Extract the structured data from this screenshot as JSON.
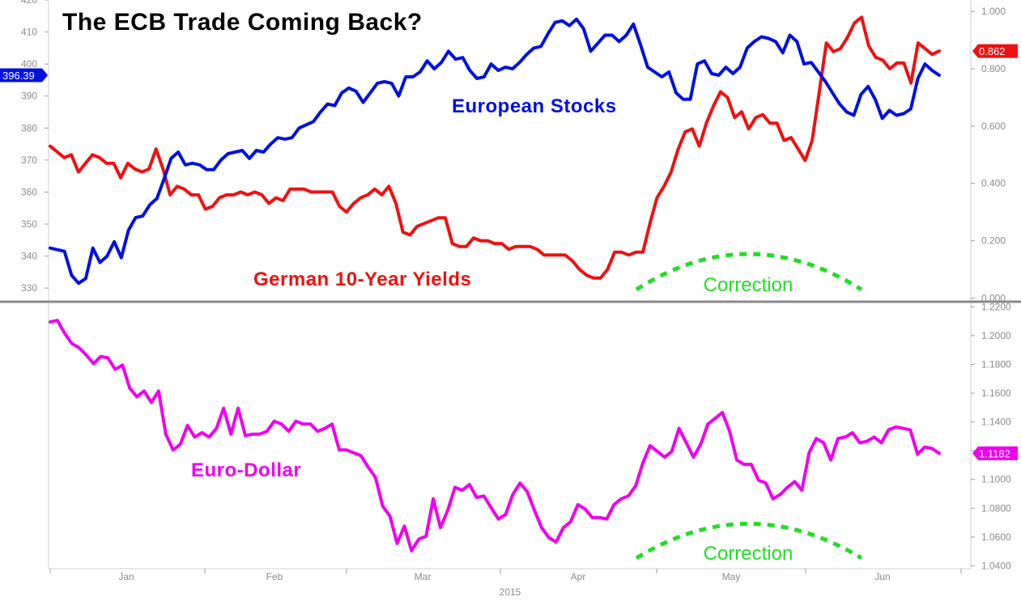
{
  "chart_data": [
    {
      "type": "line",
      "title": "The ECB Trade Coming Back?",
      "x_ticks": [
        "Jan",
        "Feb",
        "Mar",
        "Apr",
        "May",
        "Jun"
      ],
      "x_year": "2015",
      "left_axis": {
        "ylim": [
          326,
          420
        ],
        "ticks": [
          "420",
          "410",
          "400",
          "390",
          "380",
          "370",
          "360",
          "350",
          "340",
          "330"
        ],
        "tick_values": [
          420,
          410,
          400,
          390,
          380,
          370,
          360,
          350,
          340,
          330
        ]
      },
      "right_axis": {
        "ylim": [
          -0.01,
          1.04
        ],
        "ticks": [
          "1.000",
          "0.800",
          "0.600",
          "0.400",
          "0.200",
          "0.000"
        ],
        "tick_values": [
          1.0,
          0.8,
          0.6,
          0.4,
          0.2,
          0.0
        ]
      },
      "series": [
        {
          "name": "European Stocks",
          "axis": "left",
          "color": "#0011dd",
          "last_value": "396.39",
          "values": [
            342.5,
            342,
            341.5,
            334,
            331.5,
            333,
            342.5,
            338,
            340,
            344.5,
            339.5,
            348,
            352,
            352.5,
            356,
            358,
            364,
            370.5,
            372.5,
            368.5,
            369,
            368.5,
            367,
            367,
            370,
            372,
            372.5,
            373,
            370.5,
            373,
            372.5,
            375,
            377,
            376.5,
            377,
            380,
            381,
            382,
            385,
            387.5,
            387,
            391,
            392.5,
            391.5,
            388,
            391,
            394,
            394.5,
            394,
            390,
            396,
            396,
            397.5,
            401,
            398.5,
            400.5,
            404,
            401.5,
            402,
            398,
            395.5,
            396,
            400,
            398,
            399,
            398.5,
            400.5,
            403,
            405,
            405.5,
            409.5,
            413,
            413.5,
            412,
            414,
            411,
            404,
            406.5,
            409,
            409,
            407,
            409,
            412.5,
            406,
            399,
            397.5,
            396,
            397.5,
            391,
            389,
            389,
            400,
            401,
            397,
            396.5,
            399,
            397,
            399,
            405,
            407,
            408.5,
            408,
            407,
            403.5,
            409,
            407,
            400,
            400.5,
            397.5,
            394.5,
            391,
            387.5,
            385,
            384,
            390.5,
            393,
            389,
            383,
            385.5,
            384,
            384.5,
            386,
            395.5,
            400,
            398,
            396.5
          ],
          "label": "European Stocks"
        },
        {
          "name": "German 10-Year Yields",
          "axis": "right",
          "color": "#ee1111",
          "last_value": "0.862",
          "values": [
            0.53,
            0.51,
            0.49,
            0.5,
            0.44,
            0.47,
            0.5,
            0.49,
            0.47,
            0.47,
            0.42,
            0.47,
            0.45,
            0.44,
            0.45,
            0.52,
            0.45,
            0.36,
            0.39,
            0.38,
            0.36,
            0.36,
            0.31,
            0.32,
            0.35,
            0.36,
            0.36,
            0.37,
            0.36,
            0.37,
            0.36,
            0.33,
            0.35,
            0.34,
            0.38,
            0.38,
            0.38,
            0.37,
            0.37,
            0.37,
            0.37,
            0.32,
            0.3,
            0.33,
            0.35,
            0.36,
            0.38,
            0.36,
            0.39,
            0.33,
            0.23,
            0.22,
            0.25,
            0.26,
            0.27,
            0.28,
            0.28,
            0.19,
            0.18,
            0.18,
            0.21,
            0.2,
            0.2,
            0.19,
            0.19,
            0.17,
            0.18,
            0.18,
            0.18,
            0.17,
            0.15,
            0.15,
            0.15,
            0.15,
            0.13,
            0.1,
            0.08,
            0.07,
            0.07,
            0.1,
            0.16,
            0.16,
            0.15,
            0.16,
            0.16,
            0.26,
            0.35,
            0.39,
            0.44,
            0.52,
            0.58,
            0.59,
            0.53,
            0.61,
            0.67,
            0.72,
            0.7,
            0.63,
            0.65,
            0.59,
            0.63,
            0.64,
            0.61,
            0.61,
            0.55,
            0.56,
            0.52,
            0.48,
            0.55,
            0.72,
            0.89,
            0.86,
            0.87,
            0.91,
            0.96,
            0.98,
            0.88,
            0.84,
            0.83,
            0.8,
            0.82,
            0.82,
            0.75,
            0.89,
            0.87,
            0.85,
            0.862
          ],
          "label": "German 10-Year Yields"
        }
      ],
      "annotation": "Correction"
    },
    {
      "type": "line",
      "right_axis": {
        "ylim": [
          1.038,
          1.223
        ],
        "ticks": [
          "1.2200",
          "1.2000",
          "1.1800",
          "1.1600",
          "1.1400",
          "1.1200",
          "1.1000",
          "1.0800",
          "1.0600",
          "1.0400"
        ],
        "tick_values": [
          1.22,
          1.2,
          1.18,
          1.16,
          1.14,
          1.12,
          1.1,
          1.08,
          1.06,
          1.04
        ]
      },
      "series": [
        {
          "name": "Euro-Dollar",
          "axis": "right",
          "color": "#ee00ee",
          "last_value": "1.1182",
          "values": [
            1.2095,
            1.2105,
            1.2015,
            1.1945,
            1.1915,
            1.1865,
            1.1805,
            1.1855,
            1.1845,
            1.1765,
            1.1795,
            1.1635,
            1.1575,
            1.1615,
            1.1535,
            1.1615,
            1.1315,
            1.1205,
            1.1245,
            1.1375,
            1.1295,
            1.1325,
            1.1295,
            1.1355,
            1.1495,
            1.1315,
            1.1495,
            1.1305,
            1.1315,
            1.1315,
            1.1335,
            1.1405,
            1.1385,
            1.1335,
            1.1405,
            1.1385,
            1.1385,
            1.1335,
            1.1355,
            1.1385,
            1.1205,
            1.1205,
            1.1185,
            1.1165,
            1.1085,
            1.1015,
            1.0815,
            1.0745,
            1.0555,
            1.0675,
            1.0505,
            1.0585,
            1.0605,
            1.0865,
            1.0665,
            1.0785,
            1.0945,
            1.0925,
            1.0965,
            1.0875,
            1.0885,
            1.0805,
            1.0725,
            1.0755,
            1.0895,
            1.0975,
            1.0915,
            1.0785,
            1.0665,
            1.0595,
            1.0565,
            1.0665,
            1.0705,
            1.0825,
            1.0795,
            1.0735,
            1.0735,
            1.0725,
            1.0825,
            1.0865,
            1.0885,
            1.0955,
            1.1115,
            1.1235,
            1.1195,
            1.1155,
            1.1195,
            1.1355,
            1.1255,
            1.1155,
            1.1245,
            1.1385,
            1.1425,
            1.1465,
            1.1335,
            1.1135,
            1.1105,
            1.1105,
            1.0995,
            1.0975,
            1.0865,
            1.0895,
            1.0945,
            1.0985,
            1.0925,
            1.1185,
            1.1285,
            1.1255,
            1.1135,
            1.1285,
            1.1295,
            1.1325,
            1.1255,
            1.1265,
            1.1295,
            1.1255,
            1.1345,
            1.1365,
            1.1355,
            1.1345,
            1.1175,
            1.1225,
            1.1215,
            1.1182
          ],
          "label": "Euro-Dollar"
        }
      ],
      "annotation": "Correction"
    }
  ]
}
